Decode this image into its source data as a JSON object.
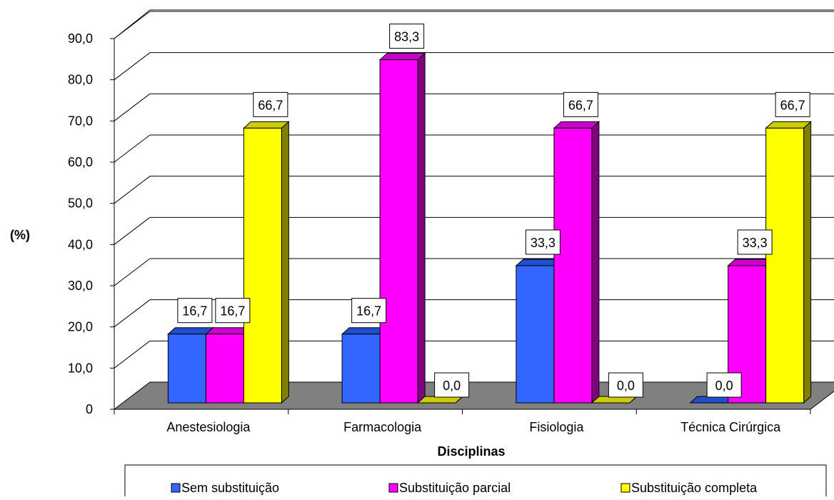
{
  "chart_data": {
    "type": "bar",
    "title": "",
    "xlabel": "Disciplinas",
    "ylabel": "(%)",
    "ylim": [
      0,
      90
    ],
    "yticks": [
      "0",
      "10,0",
      "20,0",
      "30,0",
      "40,0",
      "50,0",
      "60,0",
      "70,0",
      "80,0",
      "90,0"
    ],
    "categories": [
      "Anestesiologia",
      "Farmacologia",
      "Fisiologia",
      "Técnica Cirúrgica"
    ],
    "series": [
      {
        "name": "Sem substituição",
        "values": [
          16.7,
          16.7,
          33.3,
          0.0
        ],
        "labels": [
          "16,7",
          "16,7",
          "33,3",
          "0,0"
        ]
      },
      {
        "name": "Substituição parcial",
        "values": [
          16.7,
          83.3,
          66.7,
          33.3
        ],
        "labels": [
          "16,7",
          "83,3",
          "66,7",
          "33,3"
        ]
      },
      {
        "name": "Substituição completa",
        "values": [
          66.7,
          0.0,
          0.0,
          66.7
        ],
        "labels": [
          "66,7",
          "0,0",
          "0,0",
          "66,7"
        ]
      }
    ],
    "grid": true,
    "three_d": true,
    "data_labels": true,
    "legend_position": "bottom",
    "colors": {
      "series_front": [
        "#3366ff",
        "#ff00ff",
        "#ffff00"
      ],
      "series_top": [
        "#1f4fcc",
        "#cc00cc",
        "#cccc00"
      ],
      "series_side": [
        "#1a3d99",
        "#800080",
        "#808000"
      ],
      "floor": "#808080",
      "gridline": "#000000"
    }
  }
}
